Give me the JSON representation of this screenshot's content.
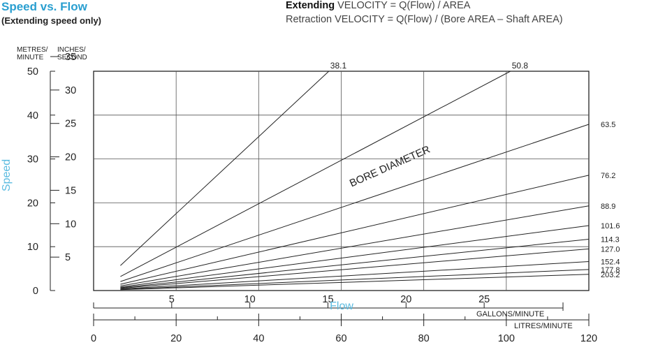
{
  "header": {
    "title": "Speed vs. Flow",
    "subtitle": "(Extending speed only)",
    "formula_extending_bold": "Extending",
    "formula_extending_rest": " VELOCITY = Q(Flow) / AREA",
    "formula_retraction": "Retraction VELOCITY = Q(Flow) / (Bore AREA – Shaft AREA)"
  },
  "colors": {
    "title": "#2a9fd0",
    "axis_title": "#5bbbe0",
    "lines": "#222222",
    "grid": "#555555"
  },
  "chart_data": {
    "type": "line",
    "x_primary": {
      "label": "LITRES/MINUTE",
      "range": [
        0,
        120
      ],
      "ticks": [
        0,
        20,
        40,
        60,
        80,
        100,
        120
      ]
    },
    "x_secondary": {
      "label": "GALLONS/MINUTE",
      "range": [
        0,
        31.7
      ],
      "ticks": [
        5,
        10,
        15,
        20,
        25
      ]
    },
    "y_primary": {
      "label": "METRES/ MINUTE",
      "range": [
        0,
        50
      ],
      "ticks": [
        0,
        10,
        20,
        30,
        40,
        50
      ]
    },
    "y_secondary": {
      "label": "INCHES/ SECOND",
      "ticks": [
        5,
        10,
        15,
        20,
        25,
        30,
        35
      ]
    },
    "axis_title_x": "Flow",
    "axis_title_y": "Speed",
    "annotation": "BORE DIAMETER",
    "x_start": 6.5,
    "series": [
      {
        "name": "38.1",
        "values": [
          [
            6.5,
            5.7
          ],
          [
            57,
            50
          ]
        ]
      },
      {
        "name": "50.8",
        "values": [
          [
            6.5,
            3.2
          ],
          [
            101,
            50
          ]
        ]
      },
      {
        "name": "63.5",
        "values": [
          [
            6.5,
            2.05
          ],
          [
            120,
            37.9
          ]
        ]
      },
      {
        "name": "76.2",
        "values": [
          [
            6.5,
            1.43
          ],
          [
            120,
            26.3
          ]
        ]
      },
      {
        "name": "88.9",
        "values": [
          [
            6.5,
            1.05
          ],
          [
            120,
            19.3
          ]
        ]
      },
      {
        "name": "101.6",
        "values": [
          [
            6.5,
            0.8
          ],
          [
            120,
            14.8
          ]
        ]
      },
      {
        "name": "114.3",
        "values": [
          [
            6.5,
            0.63
          ],
          [
            120,
            11.7
          ]
        ]
      },
      {
        "name": "127.0",
        "values": [
          [
            6.5,
            0.51
          ],
          [
            120,
            9.5
          ]
        ]
      },
      {
        "name": "152.4",
        "values": [
          [
            6.5,
            0.36
          ],
          [
            120,
            6.6
          ]
        ]
      },
      {
        "name": "177.8",
        "values": [
          [
            6.5,
            0.26
          ],
          [
            120,
            4.8
          ]
        ]
      },
      {
        "name": "203.2",
        "values": [
          [
            6.5,
            0.2
          ],
          [
            120,
            3.7
          ]
        ]
      }
    ]
  }
}
